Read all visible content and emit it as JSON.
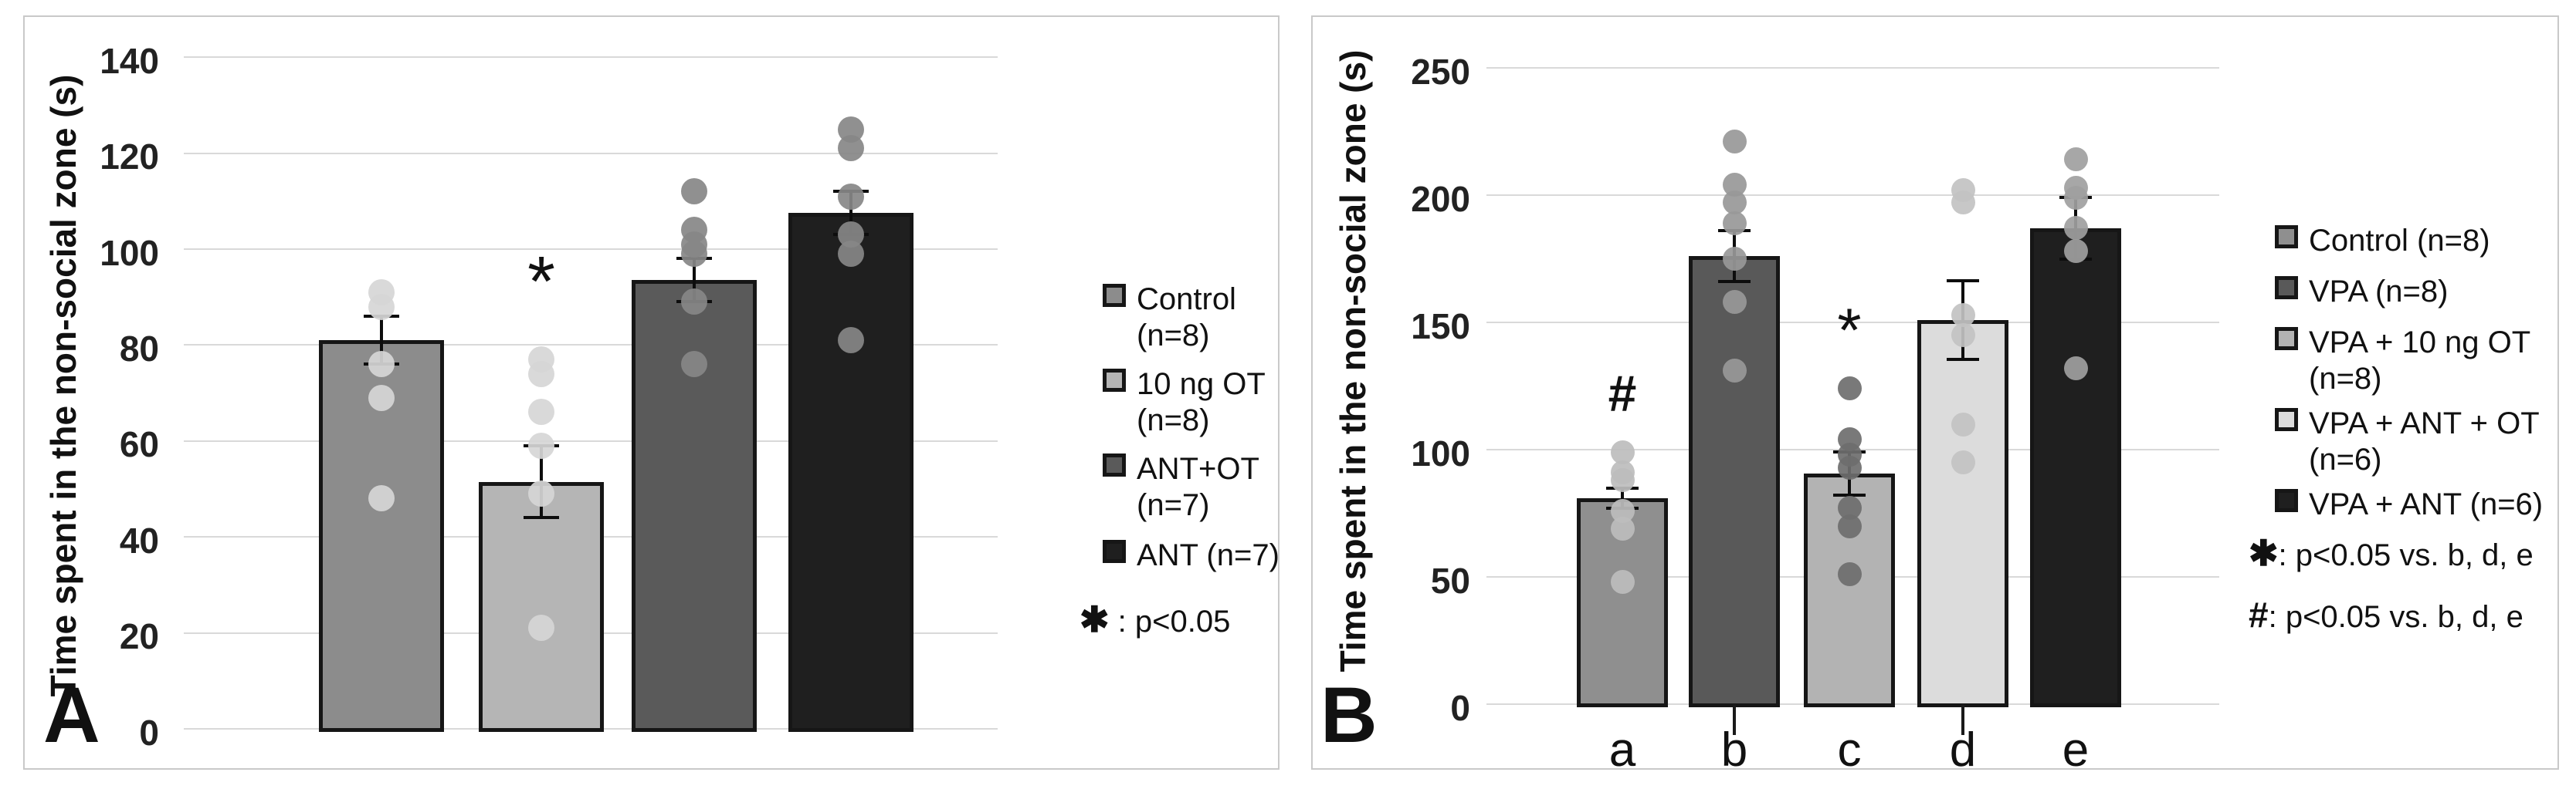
{
  "figure": {
    "background": "#ffffff",
    "panel_border_color": "#c9c9c9",
    "accent_black": "#1f1f1f",
    "gridline_color": "#d9d9d9"
  },
  "chart_data": [
    {
      "type": "bar",
      "panel": "A",
      "title": "",
      "xlabel": "",
      "ylabel": "Time spent in the non-social zone (s)",
      "ylim": [
        0,
        140
      ],
      "ytick_step": 20,
      "yticks": [
        0,
        20,
        40,
        60,
        80,
        100,
        120,
        140
      ],
      "grid": true,
      "legend_position": "right",
      "categories": [],
      "bars": [
        {
          "name": "Control",
          "legend_lines": [
            "Control",
            "(n=8)"
          ],
          "n": 8,
          "mean": 81,
          "sem": 5,
          "points": [
            91,
            88,
            76,
            69,
            48
          ],
          "color": "#8C8C8C",
          "dot_color": "#D6D6D6",
          "annotation": null
        },
        {
          "name": "10 ng OT",
          "legend_lines": [
            "10 ng OT",
            "(n=8)"
          ],
          "n": 8,
          "mean": 51.5,
          "sem": 7.5,
          "points": [
            77,
            74,
            66,
            59,
            49,
            21
          ],
          "color": "#B5B5B5",
          "dot_color": "#D6D6D6",
          "annotation": {
            "symbol": "*",
            "y": 92
          }
        },
        {
          "name": "ANT+OT",
          "legend_lines": [
            "ANT+OT",
            "(n=7)"
          ],
          "n": 7,
          "mean": 93.5,
          "sem": 4.5,
          "points": [
            112,
            104,
            101,
            99,
            89,
            76
          ],
          "color": "#5A5A5A",
          "dot_color": "#878787",
          "annotation": null
        },
        {
          "name": "ANT",
          "legend_lines": [
            "ANT (n=7)"
          ],
          "n": 7,
          "mean": 107.5,
          "sem": 4.5,
          "points": [
            125,
            121,
            111,
            103,
            99,
            81
          ],
          "color": "#1F1F1F",
          "dot_color": "#878787",
          "annotation": null
        }
      ],
      "notes": [
        {
          "symbol": "✱",
          "text": " : p<0.05"
        }
      ]
    },
    {
      "type": "bar",
      "panel": "B",
      "title": "",
      "xlabel": "",
      "ylabel": "Time spent in the non-social zone (s)",
      "ylim": [
        0,
        250
      ],
      "ytick_step": 50,
      "yticks": [
        0,
        50,
        100,
        150,
        200,
        250
      ],
      "grid": true,
      "legend_position": "right",
      "categories": [
        "a",
        "b",
        "c",
        "d",
        "e"
      ],
      "bars": [
        {
          "name": "Control",
          "legend_lines": [
            "Control (n=8)"
          ],
          "n": 8,
          "mean": 81,
          "sem": 4,
          "points": [
            99,
            91,
            88,
            76,
            69,
            48
          ],
          "color": "#8F8F8F",
          "dot_color": "#BDBDBD",
          "annotation": {
            "symbol": "#",
            "y": 122
          }
        },
        {
          "name": "VPA",
          "legend_lines": [
            "VPA (n=8)"
          ],
          "n": 8,
          "mean": 176,
          "sem": 10,
          "points": [
            221,
            204,
            197,
            189,
            175,
            158,
            131
          ],
          "color": "#595959",
          "dot_color": "#989898",
          "annotation": null
        },
        {
          "name": "VPA + 10 ng OT",
          "legend_lines": [
            "VPA + 10 ng OT",
            "(n=8)"
          ],
          "n": 8,
          "mean": 90.5,
          "sem": 8.5,
          "points": [
            124,
            104,
            98,
            93,
            77,
            70,
            51
          ],
          "color": "#B3B3B3",
          "dot_color": "#6E6E6E",
          "annotation": {
            "symbol": "*",
            "y": 145
          }
        },
        {
          "name": "VPA + ANT + OT",
          "legend_lines": [
            "VPA + ANT + OT",
            "(n=6)"
          ],
          "n": 6,
          "mean": 151,
          "sem": 15.5,
          "points": [
            202,
            197,
            153,
            145,
            110,
            95
          ],
          "color": "#DCDCDC",
          "dot_color": "#C2C2C2",
          "annotation": null
        },
        {
          "name": "VPA + ANT",
          "legend_lines": [
            "VPA + ANT (n=6)"
          ],
          "n": 6,
          "mean": 187,
          "sem": 12,
          "points": [
            214,
            203,
            199,
            187,
            178,
            132
          ],
          "color": "#1F1F1F",
          "dot_color": "#A0A0A0",
          "annotation": null
        }
      ],
      "notes": [
        {
          "symbol": "✱",
          "text": ": p<0.05 vs. b, d, e"
        },
        {
          "symbol": "#",
          "text": ": p<0.05 vs. b, d, e"
        }
      ]
    }
  ]
}
